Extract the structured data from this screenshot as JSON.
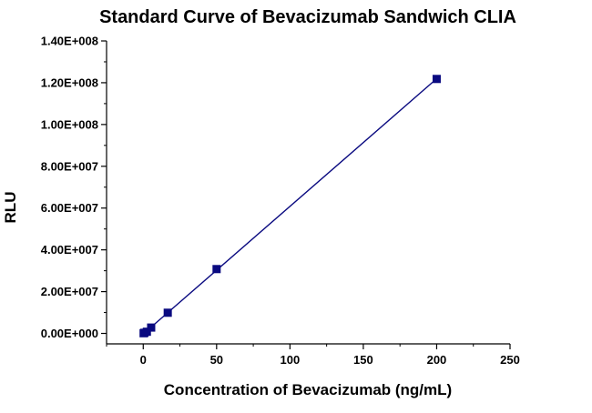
{
  "chart_data": {
    "type": "scatter",
    "title": "Standard Curve of Bevacizumab Sandwich CLIA",
    "xlabel": "Concentration of Bevacizumab (ng/mL)",
    "ylabel": "RLU",
    "xlim": [
      -25,
      250
    ],
    "ylim": [
      -5000000,
      140000000
    ],
    "x_ticks": [
      0,
      50,
      100,
      150,
      200,
      250
    ],
    "x_tick_labels": [
      "0",
      "50",
      "100",
      "150",
      "200",
      "250"
    ],
    "y_ticks": [
      0,
      20000000,
      40000000,
      60000000,
      80000000,
      100000000,
      120000000,
      140000000
    ],
    "y_tick_labels": [
      "0.00E+000",
      "2.00E+007",
      "4.00E+007",
      "6.00E+007",
      "8.00E+007",
      "1.00E+008",
      "1.20E+008",
      "1.40E+008"
    ],
    "grid": false,
    "legend": "none",
    "marker_color": "#0a0a80",
    "line_color": "#0a0a80",
    "fit": "linear",
    "series": [
      {
        "x": [
          0.27,
          0.82,
          2.47,
          5.4,
          16.7,
          50,
          200
        ],
        "y": [
          100000,
          300000,
          800000,
          2800000,
          9900000,
          30800000,
          121800000
        ]
      }
    ]
  }
}
